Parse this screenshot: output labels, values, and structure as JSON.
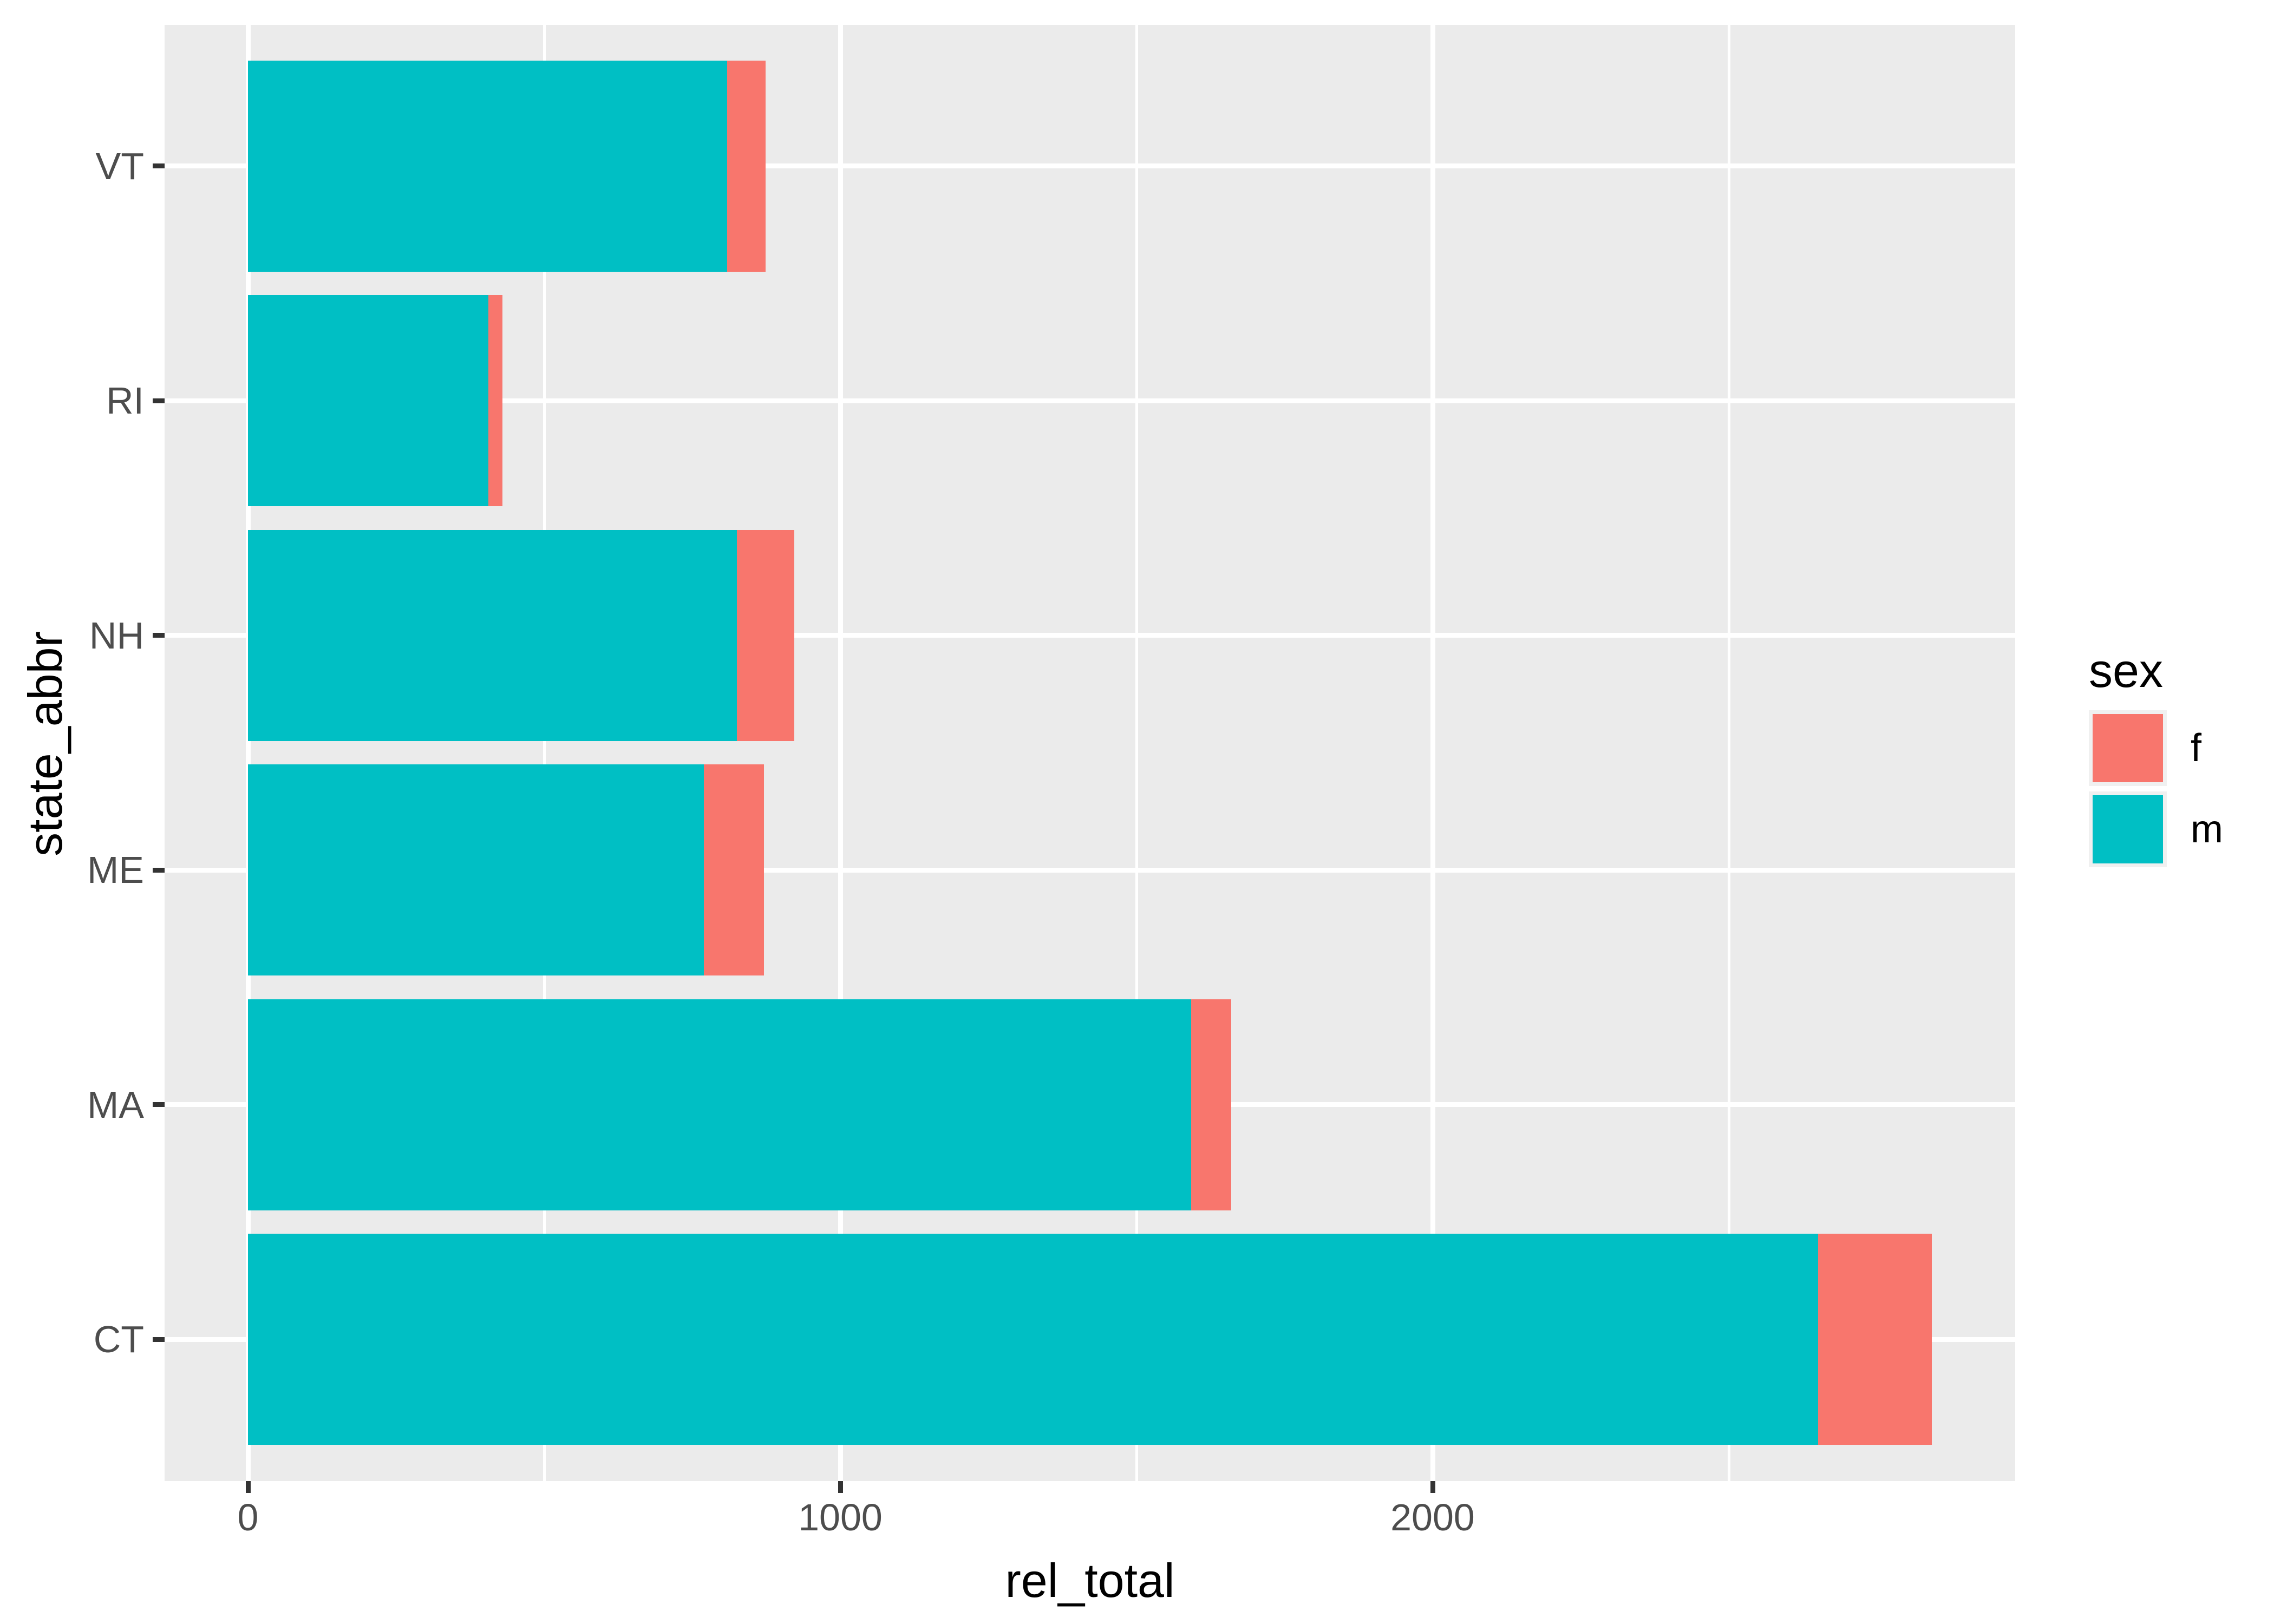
{
  "figure": {
    "background": "#FFFFFF"
  },
  "chart_data": {
    "type": "bar",
    "orientation": "horizontal",
    "stacked": true,
    "title": "",
    "xlabel": "rel_total",
    "ylabel": "state_abbr",
    "categories": [
      "VT",
      "RI",
      "NH",
      "ME",
      "MA",
      "CT"
    ],
    "series": [
      {
        "name": "m",
        "color": "#00BFC4",
        "values": [
          809,
          406,
          825,
          770,
          1592,
          2651
        ]
      },
      {
        "name": "f",
        "color": "#F8766D",
        "values": [
          65,
          24,
          97,
          101,
          68,
          192
        ]
      }
    ],
    "totals": [
      874,
      430,
      922,
      871,
      1660,
      2843
    ],
    "x_ticks": [
      0,
      1000,
      2000
    ],
    "x_minor_ticks": [
      500,
      1500,
      2500
    ],
    "xlim": [
      -142,
      2985
    ],
    "grid": true,
    "legend": {
      "title": "sex",
      "position": "right",
      "entries": [
        {
          "label": "f",
          "color": "#F8766D"
        },
        {
          "label": "m",
          "color": "#00BFC4"
        }
      ]
    },
    "style": {
      "panel_background": "#EBEBEB",
      "grid_color": "#FFFFFF",
      "tick_color": "#333333",
      "axis_text_color": "#4D4D4D",
      "title_color": "#000000",
      "legend_key_background": "#F0F0F0"
    }
  }
}
